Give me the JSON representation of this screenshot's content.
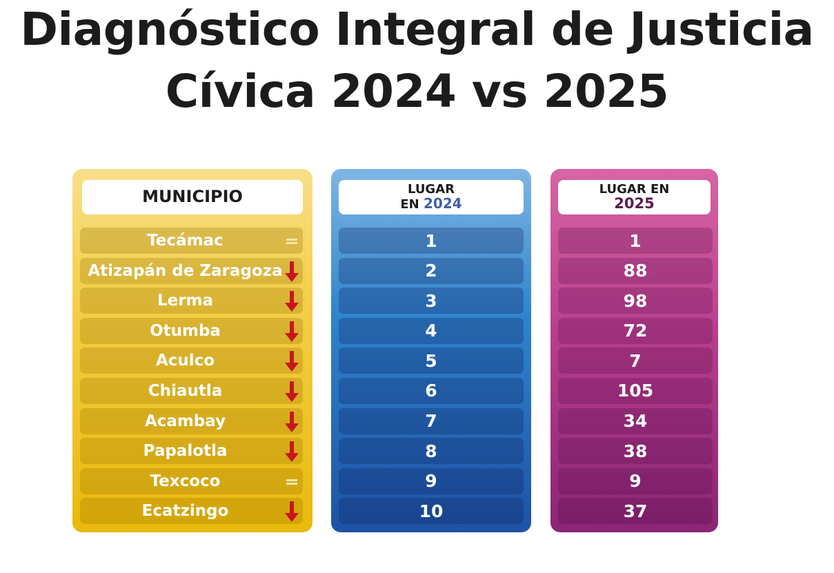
{
  "title": {
    "line1": "Diagnóstico Integral de Justicia",
    "line2": "Cívica 2024 vs 2025"
  },
  "columns": {
    "municipio": "MUNICIPIO",
    "lugar_2024_label": "LUGAR",
    "lugar_2024_prefix": "EN",
    "lugar_2024_year": "2024",
    "lugar_2025_label": "LUGAR EN",
    "lugar_2025_year": "2025"
  },
  "colors": {
    "down_arrow": "#c8161d",
    "equal_sign": "#f5e6b0"
  },
  "rows": [
    {
      "municipio": "Tecámac",
      "lugar_2024": "1",
      "lugar_2025": "1",
      "trend": "equal-icon"
    },
    {
      "municipio": "Atizapán de Zaragoza",
      "lugar_2024": "2",
      "lugar_2025": "88",
      "trend": "down-arrow-icon"
    },
    {
      "municipio": "Lerma",
      "lugar_2024": "3",
      "lugar_2025": "98",
      "trend": "down-arrow-icon"
    },
    {
      "municipio": "Otumba",
      "lugar_2024": "4",
      "lugar_2025": "72",
      "trend": "down-arrow-icon"
    },
    {
      "municipio": "Aculco",
      "lugar_2024": "5",
      "lugar_2025": "7",
      "trend": "down-arrow-icon"
    },
    {
      "municipio": "Chiautla",
      "lugar_2024": "6",
      "lugar_2025": "105",
      "trend": "down-arrow-icon"
    },
    {
      "municipio": "Acambay",
      "lugar_2024": "7",
      "lugar_2025": "34",
      "trend": "down-arrow-icon"
    },
    {
      "municipio": "Papalotla",
      "lugar_2024": "8",
      "lugar_2025": "38",
      "trend": "down-arrow-icon"
    },
    {
      "municipio": "Texcoco",
      "lugar_2024": "9",
      "lugar_2025": "9",
      "trend": "equal-icon"
    },
    {
      "municipio": "Ecatzingo",
      "lugar_2024": "10",
      "lugar_2025": "37",
      "trend": "down-arrow-icon"
    }
  ]
}
